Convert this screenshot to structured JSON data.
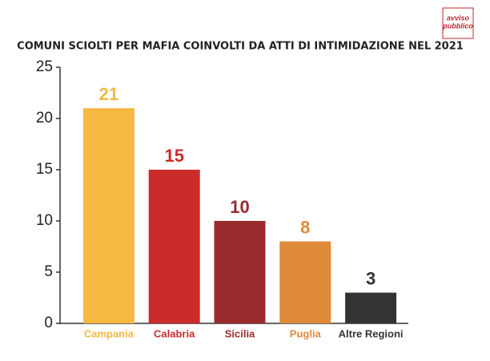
{
  "chart_data": {
    "type": "bar",
    "title": "COMUNI SCIOLTI PER MAFIA COINVOLTI DA ATTI DI INTIMIDAZIONE NEL 2021",
    "logo": [
      "avviso",
      "pubblico"
    ],
    "categories": [
      "Campania",
      "Calabria",
      "Sicilia",
      "Puglia",
      "Altre Regioni"
    ],
    "values": [
      21,
      15,
      10,
      8,
      3
    ],
    "colors": [
      "#f5b841",
      "#cb2b2b",
      "#9b2a2f",
      "#de8a39",
      "#333333"
    ],
    "ylim": [
      0,
      25
    ],
    "yticks": [
      0,
      5,
      10,
      15,
      20,
      25
    ],
    "grid": false
  }
}
